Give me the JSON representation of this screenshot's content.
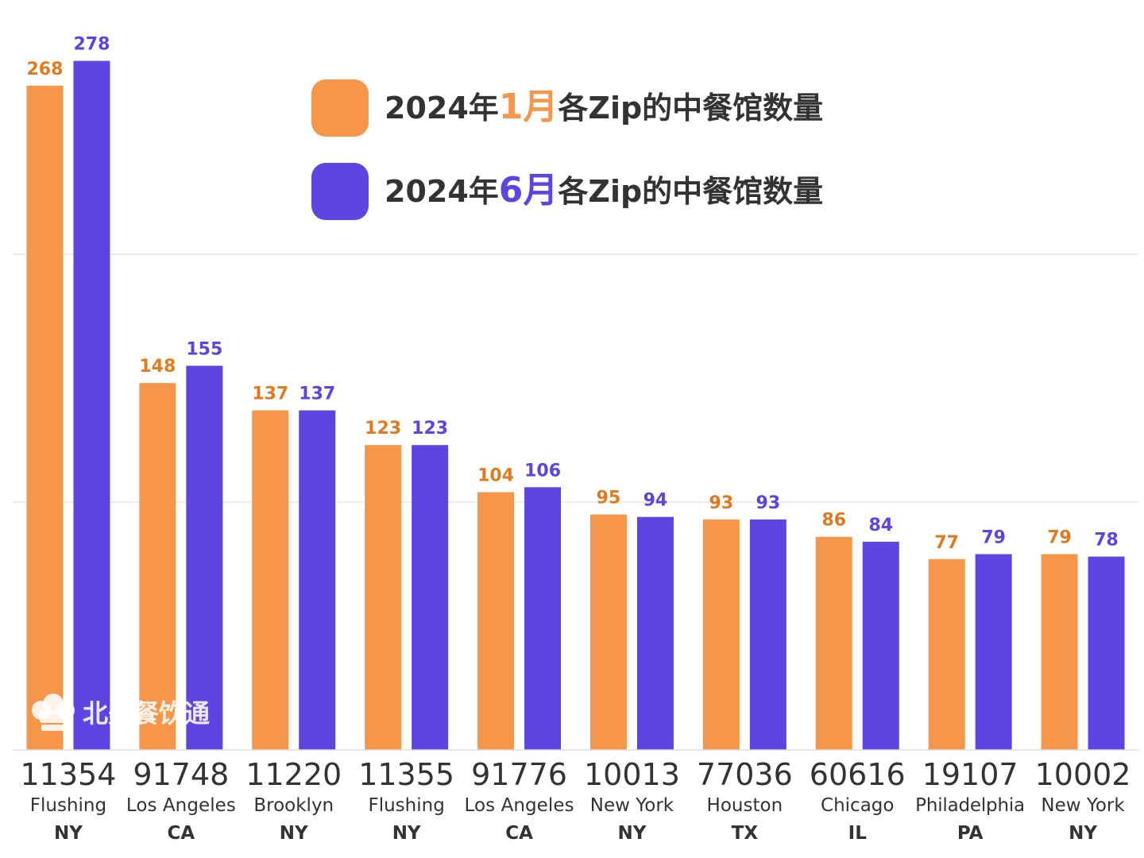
{
  "colors": {
    "jan": "#F5964A",
    "jun": "#5E44E0",
    "jan_label": "#E07A20",
    "jun_label": "#5E44E0",
    "grid": "#dddddd",
    "text": "#333333"
  },
  "legend": {
    "items": [
      {
        "prefix": "2024年",
        "month": "1月",
        "suffix": "各Zip的中餐馆数量",
        "color_key": "jan"
      },
      {
        "prefix": "2024年",
        "month": "6月",
        "suffix": "各Zip的中餐馆数量",
        "color_key": "jun"
      }
    ]
  },
  "watermark": {
    "icon": "chef-hat-icon",
    "text": "北美餐饮通"
  },
  "chart_data": {
    "type": "bar",
    "categories": [
      {
        "zip": "11354",
        "city": "Flushing",
        "state": "NY"
      },
      {
        "zip": "91748",
        "city": "Los Angeles",
        "state": "CA"
      },
      {
        "zip": "11220",
        "city": "Brooklyn",
        "state": "NY"
      },
      {
        "zip": "11355",
        "city": "Flushing",
        "state": "NY"
      },
      {
        "zip": "91776",
        "city": "Los Angeles",
        "state": "CA"
      },
      {
        "zip": "10013",
        "city": "New York",
        "state": "NY"
      },
      {
        "zip": "77036",
        "city": "Houston",
        "state": "TX"
      },
      {
        "zip": "60616",
        "city": "Chicago",
        "state": "IL"
      },
      {
        "zip": "19107",
        "city": "Philadelphia",
        "state": "PA"
      },
      {
        "zip": "10002",
        "city": "New York",
        "state": "NY"
      }
    ],
    "series": [
      {
        "name": "2024年1月各Zip的中餐馆数量",
        "values": [
          268,
          148,
          137,
          123,
          104,
          95,
          93,
          86,
          77,
          79
        ]
      },
      {
        "name": "2024年6月各Zip的中餐馆数量",
        "values": [
          278,
          155,
          137,
          123,
          106,
          94,
          93,
          84,
          79,
          78
        ]
      }
    ],
    "ylim": [
      0,
      300
    ],
    "gridlines": [
      100,
      200
    ],
    "grid": true,
    "legend_position": "top-center",
    "data_labels": true
  }
}
